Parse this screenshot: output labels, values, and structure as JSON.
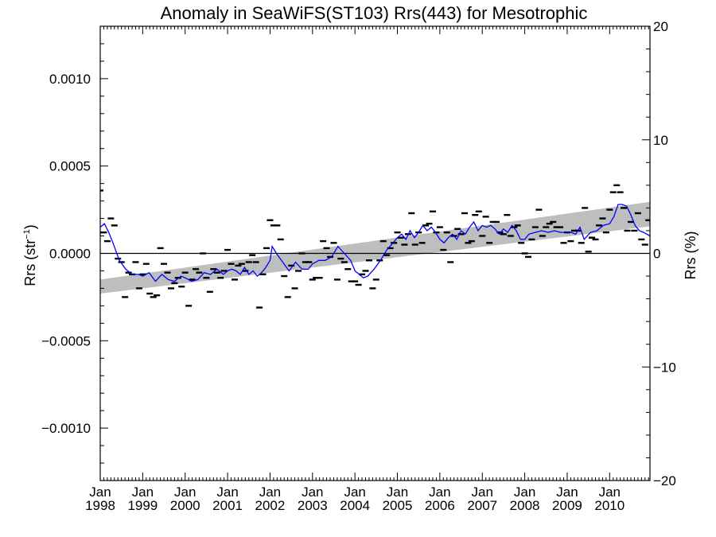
{
  "chart_data": {
    "type": "scatter",
    "title": "Anomaly in SeaWiFS(ST103) Rrs(443) for Mesotrophic",
    "ylabel_left": "Rrs (str",
    "ylabel_left_sup": "−1",
    "ylabel_left_close": ")",
    "ylabel_right": "Rrs (%)",
    "x_range": [
      1998.0,
      2010.95
    ],
    "ylim_left": [
      -0.0013,
      0.0013
    ],
    "ylim_right": [
      -20,
      20
    ],
    "grid": false,
    "legend": "none",
    "y_ticks_left": [
      {
        "value": 0.001,
        "label": "0.0010"
      },
      {
        "value": 0.0005,
        "label": "0.0005"
      },
      {
        "value": 0.0,
        "label": "0.0000"
      },
      {
        "value": -0.0005,
        "label": "−0.0005"
      },
      {
        "value": -0.001,
        "label": "−0.0010"
      }
    ],
    "y_ticks_right": [
      {
        "value": 20,
        "label": "20"
      },
      {
        "value": 10,
        "label": "10"
      },
      {
        "value": 0,
        "label": "0"
      },
      {
        "value": -10,
        "label": "−10"
      },
      {
        "value": -20,
        "label": "−20"
      }
    ],
    "x_ticks": [
      {
        "value": 1998,
        "month": "Jan",
        "year": "1998"
      },
      {
        "value": 1999,
        "month": "Jan",
        "year": "1999"
      },
      {
        "value": 2000,
        "month": "Jan",
        "year": "2000"
      },
      {
        "value": 2001,
        "month": "Jan",
        "year": "2001"
      },
      {
        "value": 2002,
        "month": "Jan",
        "year": "2002"
      },
      {
        "value": 2003,
        "month": "Jan",
        "year": "2003"
      },
      {
        "value": 2004,
        "month": "Jan",
        "year": "2004"
      },
      {
        "value": 2005,
        "month": "Jan",
        "year": "2005"
      },
      {
        "value": 2006,
        "month": "Jan",
        "year": "2006"
      },
      {
        "value": 2007,
        "month": "Jan",
        "year": "2007"
      },
      {
        "value": 2008,
        "month": "Jan",
        "year": "2008"
      },
      {
        "value": 2009,
        "month": "Jan",
        "year": "2009"
      },
      {
        "value": 2010,
        "month": "Jan",
        "year": "2010"
      }
    ],
    "trend_band": {
      "x": [
        1998.0,
        2010.95
      ],
      "lower": [
        -0.00023,
        0.000155
      ],
      "upper": [
        -0.00015,
        0.000295
      ],
      "color": "#bebebe"
    },
    "zero_line": 0.0,
    "colors": {
      "smoothed": "#0000ff",
      "monthly": "#000000",
      "band": "#bebebe"
    },
    "monthly_points": {
      "x": [
        1998.0,
        1998.083,
        1998.167,
        1998.25,
        1998.333,
        1998.417,
        1998.5,
        1998.583,
        1998.667,
        1998.75,
        1998.833,
        1998.917,
        1999.0,
        1999.083,
        1999.167,
        1999.25,
        1999.333,
        1999.417,
        1999.5,
        1999.583,
        1999.667,
        1999.75,
        1999.833,
        1999.917,
        2000.0,
        2000.083,
        2000.167,
        2000.25,
        2000.333,
        2000.417,
        2000.5,
        2000.583,
        2000.667,
        2000.75,
        2000.833,
        2000.917,
        2001.0,
        2001.083,
        2001.167,
        2001.25,
        2001.333,
        2001.417,
        2001.5,
        2001.583,
        2001.667,
        2001.75,
        2001.833,
        2001.917,
        2002.0,
        2002.083,
        2002.167,
        2002.25,
        2002.333,
        2002.417,
        2002.5,
        2002.583,
        2002.667,
        2002.75,
        2002.833,
        2002.917,
        2003.0,
        2003.083,
        2003.167,
        2003.25,
        2003.333,
        2003.417,
        2003.5,
        2003.583,
        2003.667,
        2003.75,
        2003.833,
        2003.917,
        2004.0,
        2004.083,
        2004.167,
        2004.25,
        2004.333,
        2004.417,
        2004.5,
        2004.583,
        2004.667,
        2004.75,
        2004.833,
        2004.917,
        2005.0,
        2005.083,
        2005.167,
        2005.25,
        2005.333,
        2005.417,
        2005.5,
        2005.583,
        2005.667,
        2005.75,
        2005.833,
        2005.917,
        2006.0,
        2006.083,
        2006.167,
        2006.25,
        2006.333,
        2006.417,
        2006.5,
        2006.583,
        2006.667,
        2006.75,
        2006.833,
        2006.917,
        2007.0,
        2007.083,
        2007.167,
        2007.25,
        2007.333,
        2007.417,
        2007.5,
        2007.583,
        2007.667,
        2007.75,
        2007.833,
        2007.917,
        2008.0,
        2008.083,
        2008.167,
        2008.25,
        2008.333,
        2008.417,
        2008.5,
        2008.583,
        2008.667,
        2008.75,
        2008.833,
        2008.917,
        2009.0,
        2009.083,
        2009.167,
        2009.25,
        2009.333,
        2009.417,
        2009.5,
        2009.583,
        2009.667,
        2009.75,
        2009.833,
        2009.917,
        2010.0,
        2010.083,
        2010.167,
        2010.25,
        2010.333,
        2010.417,
        2010.5,
        2010.583,
        2010.667,
        2010.75,
        2010.833,
        2010.917
      ],
      "y": [
        0.00036,
        0.00012,
        7e-05,
        0.0002,
        0.00016,
        -3e-05,
        -5e-05,
        -0.00025,
        -0.00011,
        -0.00012,
        -5e-05,
        -0.0002,
        -0.00012,
        -6e-05,
        -0.00023,
        -0.00025,
        -0.00024,
        3e-05,
        -6e-05,
        -0.00011,
        -0.0002,
        -0.00017,
        -0.00014,
        -0.00019,
        -0.00011,
        -0.0003,
        -0.00015,
        -9e-05,
        -0.00011,
        0.0,
        -0.00014,
        -0.00022,
        -9e-05,
        -0.00011,
        -0.00014,
        -0.0001,
        2e-05,
        -6e-05,
        -0.00015,
        -7e-05,
        -6e-05,
        -0.0001,
        -5e-05,
        -1e-05,
        -5e-05,
        -0.00031,
        -0.00012,
        3e-05,
        0.00019,
        0.00016,
        0.00016,
        8e-05,
        -0.00013,
        -0.00025,
        -7e-05,
        -0.0002,
        -0.0001,
        0.0,
        -5e-05,
        -5e-05,
        -0.00015,
        -0.00014,
        -0.00014,
        7e-05,
        3e-05,
        -2e-05,
        6e-05,
        -0.00015,
        -3e-05,
        -5e-05,
        -9e-05,
        -0.00016,
        -0.00016,
        -0.00018,
        -0.00012,
        -0.0001,
        -4e-05,
        -0.0002,
        -0.00015,
        -4e-05,
        7e-05,
        -1e-05,
        3e-05,
        6e-05,
        0.00012,
        9e-05,
        5e-05,
        0.00011,
        0.00023,
        5e-05,
        0.00012,
        6e-05,
        0.00016,
        0.00017,
        0.00024,
        0.00012,
        0.00015,
        2e-05,
        0.00012,
        -5e-05,
        0.0001,
        0.00014,
        0.00011,
        0.00023,
        6e-05,
        7e-05,
        0.00022,
        0.00024,
        0.0001,
        0.00021,
        6e-05,
        0.00018,
        0.00018,
        0.00012,
        0.00011,
        0.00022,
        0.0001,
        0.00015,
        0.00016,
        6e-05,
        0.0,
        -2e-05,
        8e-05,
        0.00015,
        0.00025,
        0.0001,
        0.00015,
        0.00017,
        0.00018,
        0.00015,
        0.00015,
        6e-05,
        0.00012,
        7e-05,
        0.00013,
        0.00013,
        6e-05,
        0.00026,
        1e-05,
        9e-05,
        8e-05,
        0.00016,
        0.0002,
        0.00012,
        0.00025,
        0.00035,
        0.00039,
        0.00035,
        0.00026,
        0.00013,
        0.00018,
        0.00013,
        0.00023,
        8e-05,
        5e-05,
        0.00019
      ]
    },
    "smoothed_line": {
      "x": [
        1998.0,
        1998.1,
        1998.2,
        1998.3,
        1998.45,
        1998.6,
        1998.75,
        1998.9,
        1999.0,
        1999.15,
        1999.3,
        1999.45,
        1999.6,
        1999.75,
        1999.9,
        2000.0,
        2000.15,
        2000.3,
        2000.45,
        2000.6,
        2000.75,
        2000.9,
        2001.0,
        2001.1,
        2001.2,
        2001.3,
        2001.4,
        2001.5,
        2001.6,
        2001.7,
        2001.8,
        2001.9,
        2002.0,
        2002.05,
        2002.15,
        2002.3,
        2002.45,
        2002.6,
        2002.75,
        2002.9,
        2003.0,
        2003.15,
        2003.3,
        2003.45,
        2003.6,
        2003.75,
        2003.9,
        2004.0,
        2004.1,
        2004.2,
        2004.3,
        2004.45,
        2004.6,
        2004.75,
        2004.9,
        2005.0,
        2005.1,
        2005.2,
        2005.3,
        2005.4,
        2005.5,
        2005.6,
        2005.7,
        2005.8,
        2005.9,
        2006.0,
        2006.1,
        2006.2,
        2006.3,
        2006.4,
        2006.5,
        2006.6,
        2006.7,
        2006.8,
        2006.9,
        2007.0,
        2007.1,
        2007.2,
        2007.3,
        2007.4,
        2007.5,
        2007.6,
        2007.7,
        2007.8,
        2007.9,
        2008.0,
        2008.1,
        2008.25,
        2008.4,
        2008.55,
        2008.7,
        2008.85,
        2009.0,
        2009.1,
        2009.2,
        2009.3,
        2009.4,
        2009.55,
        2009.7,
        2009.85,
        2010.0,
        2010.1,
        2010.2,
        2010.3,
        2010.4,
        2010.5,
        2010.6,
        2010.7,
        2010.8,
        2010.95
      ],
      "y": [
        0.00015,
        0.00017,
        0.00012,
        6e-05,
        -4e-05,
        -9e-05,
        -0.00012,
        -0.00012,
        -0.00013,
        -0.00011,
        -0.00016,
        -0.00012,
        -0.00015,
        -0.00016,
        -0.00013,
        -0.00014,
        -0.00016,
        -0.00015,
        -0.00011,
        -0.00012,
        -9e-05,
        -0.00012,
        -0.0001,
        -9e-05,
        -0.0001,
        -0.00012,
        -8e-05,
        -0.00012,
        -0.0001,
        -0.00013,
        -0.00011,
        -8e-05,
        -4e-05,
        4e-05,
        0.0,
        -5e-05,
        -0.0001,
        -5e-05,
        -9e-05,
        -9e-05,
        -6e-05,
        -4e-05,
        -4e-05,
        -2e-05,
        4e-05,
        0.0,
        -4e-05,
        -0.0001,
        -0.00012,
        -0.00014,
        -0.00013,
        -9e-05,
        -4e-05,
        2e-05,
        6e-05,
        9e-05,
        0.00011,
        8e-05,
        0.00013,
        9e-05,
        0.00012,
        0.00016,
        0.00013,
        0.00015,
        0.00012,
        8e-05,
        6e-05,
        9e-05,
        0.00011,
        8e-05,
        0.00013,
        0.00011,
        0.00015,
        0.00018,
        0.00013,
        0.00016,
        0.00015,
        0.00016,
        0.00014,
        0.00011,
        0.00014,
        0.00012,
        0.00016,
        0.00013,
        8e-05,
        8e-05,
        0.00011,
        0.00012,
        0.00013,
        0.00012,
        0.00013,
        0.00012,
        0.00012,
        0.00012,
        0.00011,
        0.00015,
        8e-05,
        0.00012,
        0.00013,
        0.00016,
        0.00017,
        0.00021,
        0.00028,
        0.00028,
        0.00027,
        0.00022,
        0.00016,
        0.00013,
        0.00012,
        0.0001
      ]
    }
  }
}
